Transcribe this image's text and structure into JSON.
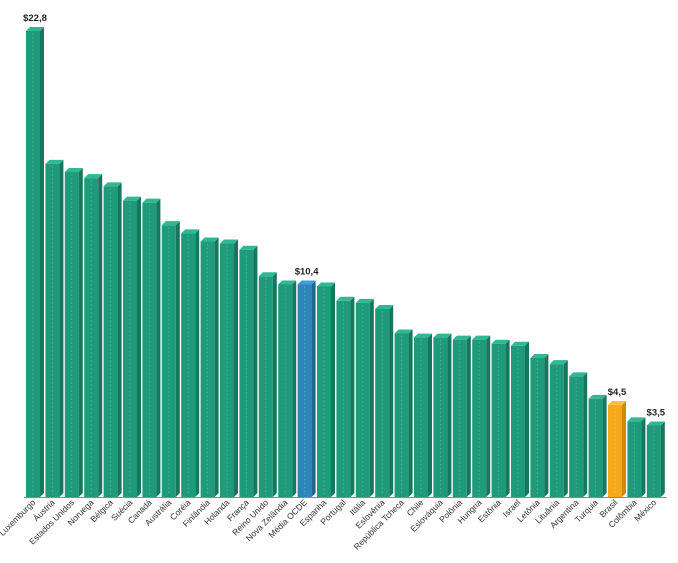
{
  "chart_data": {
    "type": "bar",
    "categories": [
      "Luxemburgo",
      "Áustria",
      "Estados Unidos",
      "Noruega",
      "Bélgica",
      "Suécia",
      "Canadá",
      "Austrália",
      "Coréia",
      "Finlândia",
      "Holanda",
      "França",
      "Reino Unido",
      "Nova Zelândia",
      "Média OCDE",
      "Espanha",
      "Portugal",
      "Itália",
      "Eslovênia",
      "República Tcheca",
      "Chile",
      "Eslováquia",
      "Polônia",
      "Hungria",
      "Estônia",
      "Israel",
      "Letônia",
      "Lituânia",
      "Argentina",
      "Turquia",
      "Brasil",
      "Colômbia",
      "México"
    ],
    "values": [
      22.8,
      16.3,
      15.9,
      15.6,
      15.2,
      14.5,
      14.4,
      13.3,
      12.9,
      12.5,
      12.4,
      12.1,
      10.8,
      10.4,
      10.4,
      10.3,
      9.6,
      9.5,
      9.2,
      8.0,
      7.8,
      7.8,
      7.7,
      7.7,
      7.5,
      7.4,
      6.8,
      6.5,
      5.9,
      4.8,
      4.5,
      3.7,
      3.5
    ],
    "data_labels": {
      "Luxemburgo": "$22,8",
      "Média OCDE": "$10,4",
      "Brasil": "$4,5",
      "México": "$3,5"
    },
    "ylim": [
      0,
      22.8
    ],
    "title": "",
    "xlabel": "",
    "ylabel": "",
    "grid": false,
    "colors": {
      "default": "#1f9b7c",
      "default_side": "#16775f",
      "default_top": "#2fb893",
      "highlight_avg": "#2d86b8",
      "highlight_avg_side": "#1f6690",
      "highlight_avg_top": "#3e9fd6",
      "highlight_brazil": "#f5a81b",
      "highlight_brazil_side": "#cf8a0c",
      "highlight_brazil_top": "#ffc040",
      "axis": "#888888"
    },
    "highlights": {
      "Média OCDE": "avg",
      "Brasil": "brazil"
    }
  }
}
